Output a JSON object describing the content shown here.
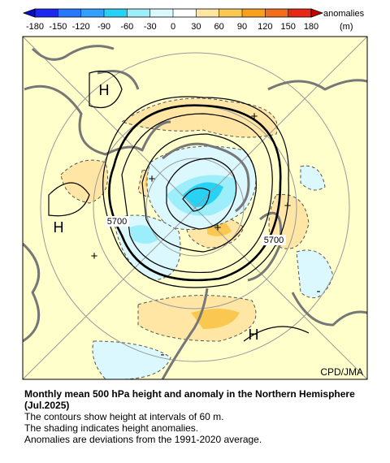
{
  "colorbar": {
    "ticks": [
      -180,
      -150,
      -120,
      -90,
      -60,
      -30,
      0,
      30,
      60,
      90,
      120,
      150,
      180
    ],
    "colors": [
      "#1e28f0",
      "#2878ff",
      "#32a0ff",
      "#28d2f5",
      "#9beefa",
      "#dcf8ff",
      "#ffffff",
      "#ffe6a5",
      "#fac850",
      "#f5a01e",
      "#f06e1e",
      "#e62814"
    ],
    "label": "anomalies",
    "unit": "(m)"
  },
  "map": {
    "labels": [
      "H",
      "H",
      "H",
      "5700",
      "5700",
      "+",
      "+",
      "+",
      "+",
      "+",
      "-",
      "-"
    ],
    "credit": "CPD/JMA"
  },
  "caption": {
    "title": "Monthly mean 500 hPa height and anomaly in the Northern Hemisphere (Jul.2025)",
    "lines": [
      "The contours show height at intervals of 60 m.",
      "The shading indicates height anomalies.",
      "Anomalies are deviations from the 1991-2020 average."
    ]
  }
}
